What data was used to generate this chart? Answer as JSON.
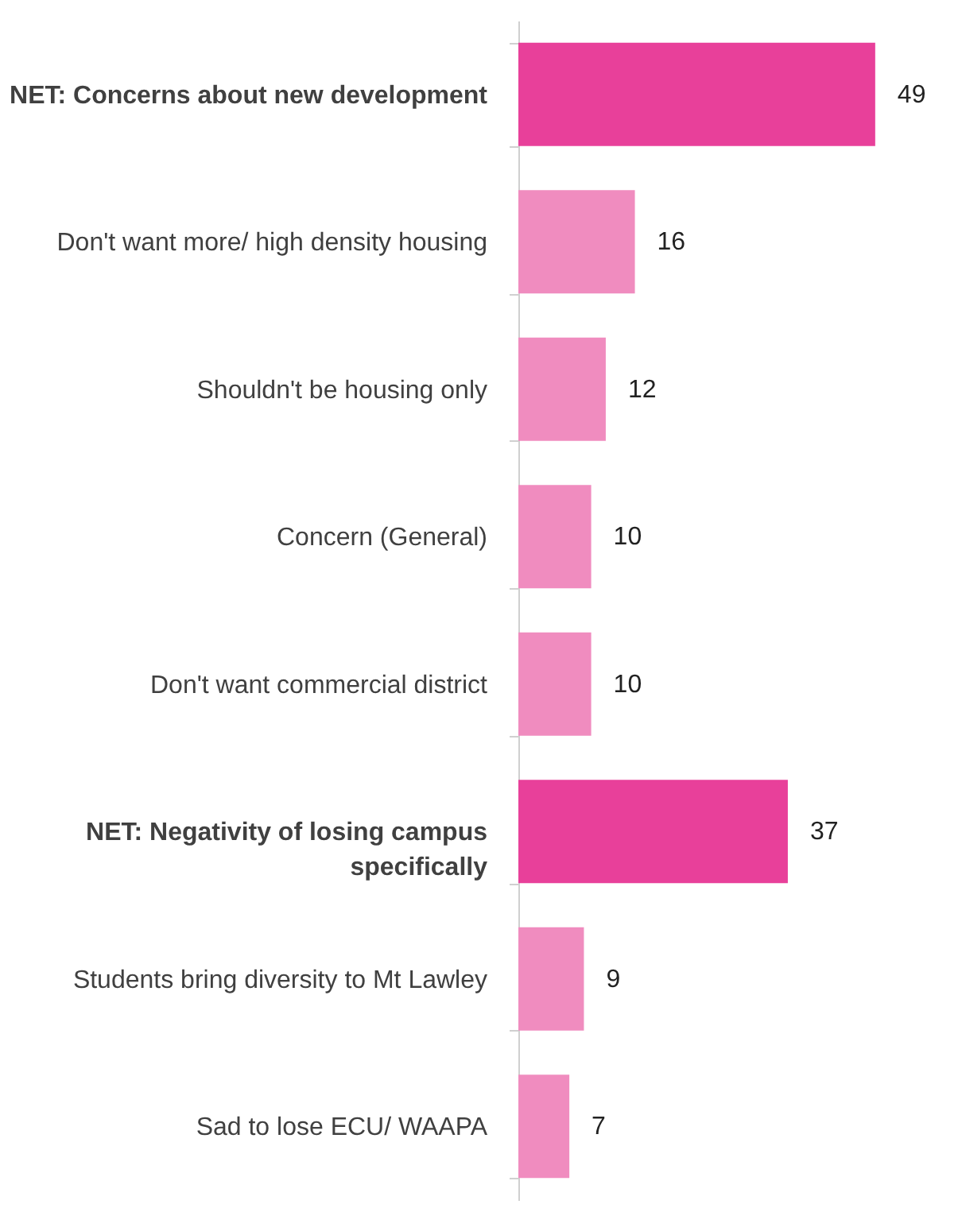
{
  "chart_data": {
    "type": "bar",
    "orientation": "horizontal",
    "data_labels": true,
    "categories": [
      "NET: Concerns about new development",
      "Don't want more/ high density housing",
      "Shouldn't be housing only",
      "Concern (General)",
      "Don't want commercial district",
      "NET: Negativity of losing campus specifically",
      "Students bring diversity to Mt Lawley",
      "Sad to lose ECU/ WAAPA"
    ],
    "values": [
      49,
      16,
      12,
      10,
      10,
      37,
      9,
      7
    ],
    "colors": [
      "#e8409a",
      "#f08cbf",
      "#f08cbf",
      "#f08cbf",
      "#f08cbf",
      "#e8409a",
      "#f08cbf",
      "#f08cbf"
    ]
  }
}
